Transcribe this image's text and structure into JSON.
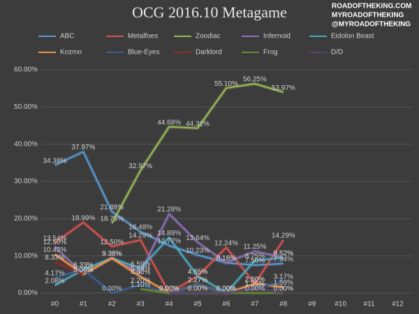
{
  "chart_data": {
    "type": "line",
    "title": "OCG 2016.10 Metagame",
    "watermark": [
      "ROADOFTHEKING.COM",
      "MYROADOFTHEKING",
      "@MYROADOFTHEKING"
    ],
    "categories": [
      "#0",
      "#1",
      "#2",
      "#3",
      "#4",
      "#5",
      "#6",
      "#7",
      "#8",
      "#9",
      "#10",
      "#11",
      "#12"
    ],
    "ylim": [
      0,
      60
    ],
    "yticks": [
      {
        "value": 0,
        "label": "0.00%"
      },
      {
        "value": 10,
        "label": "10.00%"
      },
      {
        "value": 20,
        "label": "20.00%"
      },
      {
        "value": 30,
        "label": "30.00%"
      },
      {
        "value": 40,
        "label": "40.00%"
      },
      {
        "value": 50,
        "label": "50.00%"
      },
      {
        "value": 60,
        "label": "60.00%"
      }
    ],
    "grid": true,
    "series": [
      {
        "name": "ABC",
        "color": "#5b9bd5",
        "values": [
          34.38,
          37.97,
          21.88,
          16.48,
          12.77,
          10.23,
          8.16,
          7.5,
          7.94,
          null,
          null,
          null,
          null
        ],
        "value_labels": [
          "34.38%",
          "37.97%",
          "21.88%",
          "16.48%",
          "12.77%",
          "10.23%",
          "8.16%",
          "7.50%",
          "7.94%",
          null,
          null,
          null,
          null
        ]
      },
      {
        "name": "Metalfoes",
        "color": "#d9534f",
        "values": [
          13.54,
          18.99,
          12.5,
          14.29,
          0,
          4.55,
          12.24,
          2.5,
          14.29,
          null,
          null,
          null,
          null
        ],
        "value_labels": [
          "13.54%",
          "18.99%",
          "12.50%",
          "14.29%",
          "0.00%",
          "4.55%",
          "12.24%",
          "2.50%",
          "14.29%",
          null,
          null,
          null,
          null
        ]
      },
      {
        "name": "Zoodiac",
        "color": "#9bbb59",
        "values": [
          null,
          null,
          18.75,
          32.97,
          44.68,
          44.32,
          55.1,
          56.25,
          53.97,
          null,
          null,
          null,
          null
        ],
        "value_labels": [
          null,
          null,
          "18.75%",
          "32.97%",
          "44.68%",
          "44.32%",
          "55.10%",
          "56.25%",
          "53.97%",
          null,
          null,
          null,
          null
        ]
      },
      {
        "name": "Infernoid",
        "color": "#8e72b8",
        "values": [
          12.5,
          5.06,
          9.38,
          5.49,
          21.28,
          13.64,
          8.16,
          11.25,
          9.52,
          null,
          null,
          null,
          null
        ],
        "value_labels": [
          "12.50%",
          "5.06%",
          "9.38%",
          "5.49%",
          "21.28%",
          "13.64%",
          "8.16%",
          "11.25%",
          "9.52%",
          null,
          null,
          null,
          null
        ]
      },
      {
        "name": "Eidolon Beast",
        "color": "#4bacc6",
        "values": [
          2.08,
          6.33,
          9.38,
          6.59,
          14.89,
          4.55,
          0,
          8.75,
          9.52,
          null,
          null,
          null,
          null
        ],
        "value_labels": [
          "2.08%",
          "6.33%",
          "9.38%",
          "6.59%",
          "14.89%",
          "4.55%",
          "0.00%",
          "8.75%",
          "9.52%",
          null,
          null,
          null,
          null
        ]
      },
      {
        "name": "Kozmo",
        "color": "#f79646",
        "values": [
          10.42,
          5.06,
          9.38,
          4.4,
          0,
          2.27,
          0,
          2.5,
          1.59,
          null,
          null,
          null,
          null
        ],
        "value_labels": [
          "10.42%",
          "5.06%",
          "9.38%",
          "4.40%",
          "0.00%",
          "2.27%",
          "0.00%",
          "2.50%",
          "1.59%",
          null,
          null,
          null,
          null
        ]
      },
      {
        "name": "Blue-Eyes",
        "color": "#3b5f95",
        "values": [
          4.17,
          6.33,
          0,
          2.2,
          0,
          2.27,
          0,
          1.25,
          3.17,
          null,
          null,
          null,
          null
        ],
        "value_labels": [
          "4.17%",
          "6.33%",
          "0.00%",
          "2.20%",
          "0.00%",
          "2.27%",
          "0.00%",
          "1.25%",
          "3.17%",
          null,
          null,
          null,
          null
        ]
      },
      {
        "name": "Darklord",
        "color": "#8c2d2a",
        "values": [
          8.33,
          5.06,
          null,
          null,
          null,
          null,
          null,
          null,
          null,
          null,
          null,
          null,
          null
        ],
        "value_labels": [
          "8.33%",
          "5.06%",
          null,
          null,
          null,
          null,
          null,
          null,
          null,
          null,
          null,
          null,
          null
        ]
      },
      {
        "name": "Frog",
        "color": "#6b8a35",
        "values": [
          null,
          null,
          null,
          1.1,
          0,
          0,
          0,
          0,
          0,
          null,
          null,
          null,
          null
        ],
        "value_labels": [
          null,
          null,
          null,
          "1.10%",
          "0.00%",
          "0.00%",
          "0.00%",
          "0.00%",
          "0.00%",
          null,
          null,
          null,
          null
        ]
      },
      {
        "name": "D/D",
        "color": "#5a4475",
        "values": [
          null,
          null,
          null,
          null,
          0,
          0,
          0,
          1.25,
          0,
          null,
          null,
          null,
          null
        ],
        "value_labels": [
          null,
          null,
          null,
          null,
          "0.00%",
          "0.00%",
          "0.00%",
          "1.25%",
          "0.00%",
          null,
          null,
          null,
          null
        ]
      }
    ]
  }
}
